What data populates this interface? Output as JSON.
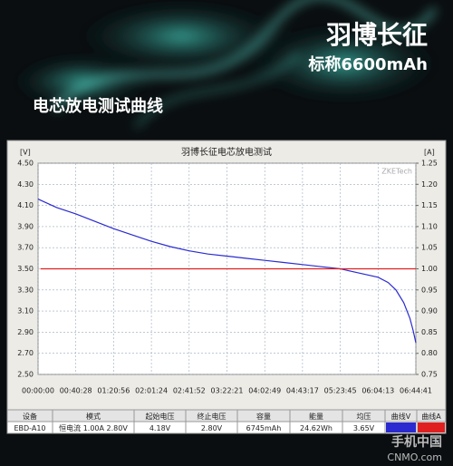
{
  "header": {
    "title": "羽博长征",
    "subtitle": "标称6600mAh",
    "heading": "电芯放电测试曲线"
  },
  "chart_data": {
    "type": "line",
    "title": "羽博长征电芯放电测试",
    "ylabel": "[V]",
    "y2label": "[A]",
    "watermark": "ZKETech",
    "grid": true,
    "xlim": [
      0,
      24281
    ],
    "xticks": [
      {
        "value": 0,
        "label": "00:00:00"
      },
      {
        "value": 2428,
        "label": "00:40:28"
      },
      {
        "value": 4856,
        "label": "01:20:56"
      },
      {
        "value": 7284,
        "label": "02:01:24"
      },
      {
        "value": 9712,
        "label": "02:41:52"
      },
      {
        "value": 12141,
        "label": "03:22:21"
      },
      {
        "value": 14569,
        "label": "04:02:49"
      },
      {
        "value": 16997,
        "label": "04:43:17"
      },
      {
        "value": 19425,
        "label": "05:23:45"
      },
      {
        "value": 21853,
        "label": "06:04:13"
      },
      {
        "value": 24281,
        "label": "06:44:41"
      }
    ],
    "ylim": [
      2.5,
      4.5
    ],
    "yticks": [
      {
        "value": 2.5,
        "label": "2.50"
      },
      {
        "value": 2.7,
        "label": "2.70"
      },
      {
        "value": 2.9,
        "label": "2.90"
      },
      {
        "value": 3.1,
        "label": "3.10"
      },
      {
        "value": 3.3,
        "label": "3.30"
      },
      {
        "value": 3.5,
        "label": "3.50"
      },
      {
        "value": 3.7,
        "label": "3.70"
      },
      {
        "value": 3.9,
        "label": "3.90"
      },
      {
        "value": 4.1,
        "label": "4.10"
      },
      {
        "value": 4.3,
        "label": "4.30"
      },
      {
        "value": 4.5,
        "label": "4.50"
      }
    ],
    "y2lim": [
      0.75,
      1.25
    ],
    "y2ticks": [
      0.75,
      {
        "value": 0.8,
        "label": "0.80"
      },
      0.85,
      {
        "value": 0.9,
        "label": "0.90"
      },
      0.95,
      {
        "value": 1.0,
        "label": "1.00"
      },
      1.05,
      {
        "value": 1.1,
        "label": "1.10"
      },
      1.15,
      {
        "value": 1.2,
        "label": "1.20"
      },
      1.25
    ],
    "series": [
      {
        "name": "曲线V",
        "color": "#2a2ad0",
        "x": [
          0,
          1200,
          2428,
          3642,
          4856,
          6070,
          7284,
          8498,
          9712,
          10926,
          12141,
          13355,
          14569,
          15783,
          16997,
          18211,
          19425,
          20639,
          21853,
          22500,
          23000,
          23500,
          23900,
          24100,
          24281
        ],
        "values": [
          4.16,
          4.08,
          4.02,
          3.95,
          3.88,
          3.82,
          3.76,
          3.71,
          3.67,
          3.64,
          3.62,
          3.6,
          3.58,
          3.56,
          3.54,
          3.52,
          3.5,
          3.46,
          3.42,
          3.37,
          3.3,
          3.18,
          3.03,
          2.92,
          2.8
        ]
      },
      {
        "name": "曲线A",
        "color": "#e02020",
        "axis": "y2",
        "x": [
          150,
          24281
        ],
        "values": [
          1.0,
          1.0
        ]
      }
    ]
  },
  "table": {
    "headers": [
      "设备",
      "模式",
      "起始电压",
      "终止电压",
      "容量",
      "能量",
      "均压",
      "曲线V",
      "曲线A"
    ],
    "rows": [
      [
        "EBD-A10",
        "恒电流 1.00A 2.80V",
        "4.18V",
        "2.80V",
        "6745mAh",
        "24.62Wh",
        "3.65V"
      ]
    ]
  },
  "watermark": {
    "name": "手机中国",
    "site": "CNMO.com"
  }
}
